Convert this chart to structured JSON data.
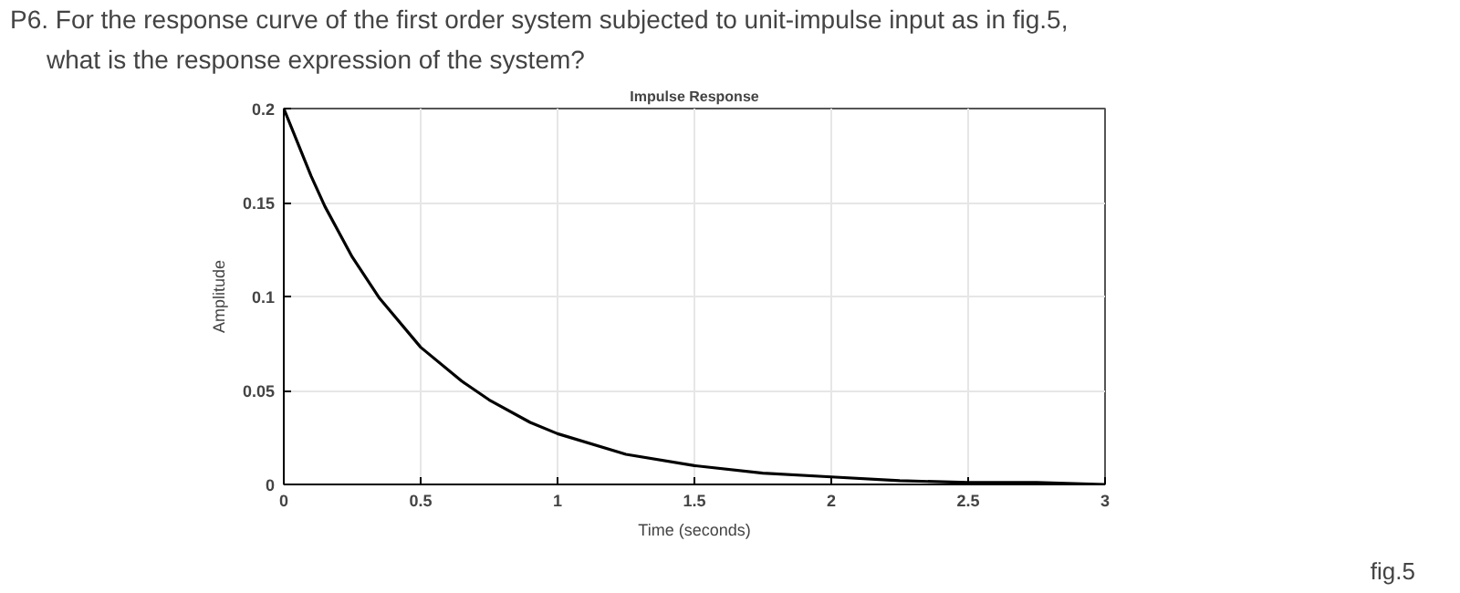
{
  "chart_data": {
    "type": "line",
    "title": "Impulse Response",
    "xlabel": "Time (seconds)",
    "ylabel": "Amplitude",
    "annotations": [
      "P6. For the response curve of the first order system subjected to unit-impulse input as in fig.5,",
      "what is the response expression of the system?",
      "fig.5"
    ],
    "x": [
      0,
      0.1,
      0.15,
      0.25,
      0.35,
      0.5,
      0.65,
      0.75,
      0.9,
      1,
      1.25,
      1.5,
      1.75,
      2,
      2.25,
      2.5,
      2.75,
      3
    ],
    "series": [
      {
        "color": "#000000",
        "values": [
          0.2,
          0.164,
          0.148,
          0.121,
          0.099,
          0.073,
          0.055,
          0.045,
          0.033,
          0.027,
          0.016,
          0.01,
          0.006,
          0.004,
          0.002,
          0.001,
          0.001,
          0
        ]
      }
    ],
    "xlim": [
      0,
      3
    ],
    "ylim": [
      0,
      0.2
    ],
    "xticks": [
      0,
      0.5,
      1,
      1.5,
      2,
      2.5,
      3
    ],
    "yticks": [
      0,
      0.05,
      0.1,
      0.15,
      0.2
    ],
    "grid": true,
    "marker": "none",
    "line_style": "solid"
  }
}
